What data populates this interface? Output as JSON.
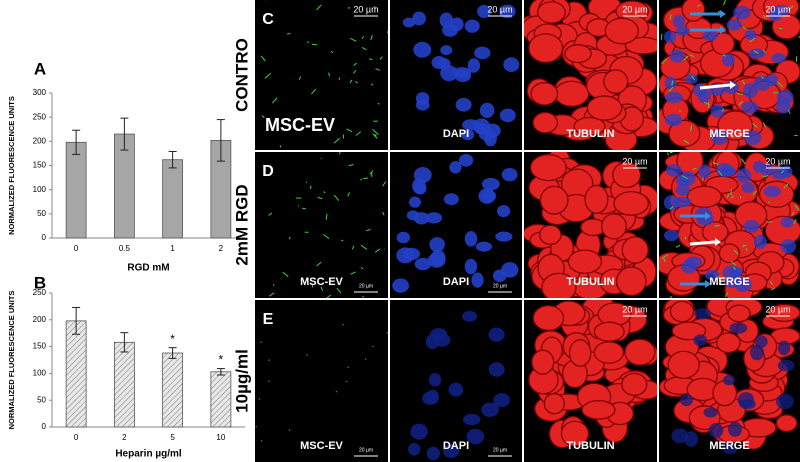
{
  "chart_data": [
    {
      "type": "bar",
      "panel": "A",
      "categories": [
        "0",
        "0.5",
        "1",
        "2"
      ],
      "values": [
        198,
        215,
        162,
        202
      ],
      "errors": [
        25,
        33,
        17,
        43
      ],
      "color": "#a6a6a6",
      "ylim": [
        0,
        300
      ],
      "yticks": [
        0,
        50,
        100,
        150,
        200,
        250,
        300
      ],
      "xlabel": "RGD mM",
      "ylabel": "NORMALIZED FLUORESCENCE UNITS"
    },
    {
      "type": "bar",
      "panel": "B",
      "categories": [
        "0",
        "2",
        "5",
        "10"
      ],
      "values": [
        198,
        158,
        138,
        103
      ],
      "errors": [
        25,
        18,
        10,
        6
      ],
      "color": "#d9d9d9",
      "hatched": true,
      "ylim": [
        0,
        250
      ],
      "yticks": [
        0,
        50,
        100,
        150,
        200,
        250
      ],
      "xlabel": "Heparin µg/ml",
      "ylabel": "NORMALIZED FLUORESCENCE UNITS",
      "annotations": [
        {
          "category": "5",
          "text": "*"
        },
        {
          "category": "10",
          "text": "*"
        }
      ]
    }
  ],
  "panels": {
    "scale_bar": "20 µm",
    "rows": [
      {
        "letter": "C",
        "label": "CONTRO",
        "columns": [
          "MSC-EV",
          "DAPI",
          "TUBULIN",
          "MERGE"
        ]
      },
      {
        "letter": "D",
        "label": "2mM RGD",
        "columns": [
          "MSC-EV",
          "DAPI",
          "TUBULIN",
          "MERGE"
        ]
      },
      {
        "letter": "E",
        "label": "10µg/ml",
        "columns": [
          "MSC-EV",
          "DAPI",
          "TUBULIN",
          "MERGE"
        ]
      }
    ]
  }
}
